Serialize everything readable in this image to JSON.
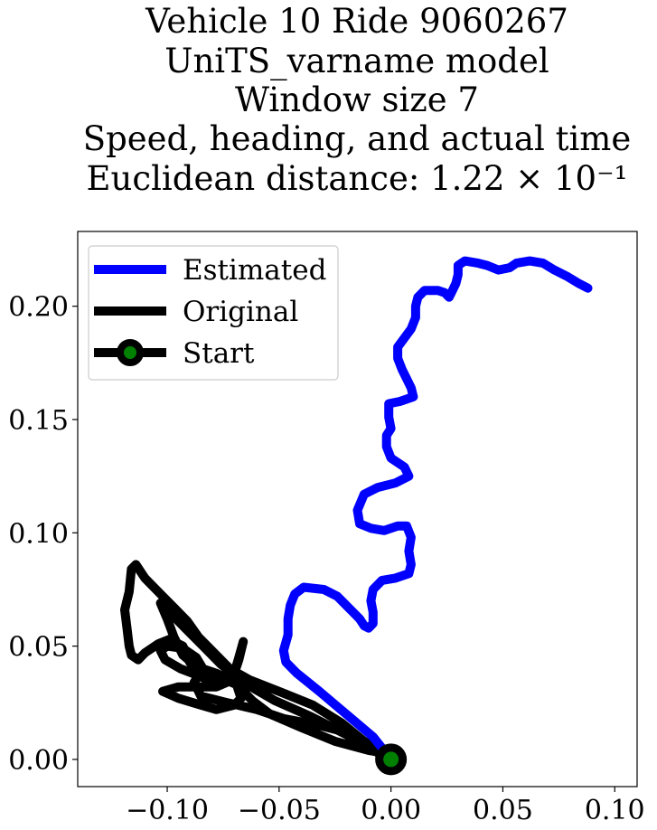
{
  "chart_data": {
    "type": "line",
    "title_lines": [
      "Vehicle 10 Ride 9060267",
      "UniTS_varname model",
      "Window size 7",
      "Speed, heading, and actual time",
      "Euclidean distance: 1.22 × 10⁻¹"
    ],
    "xlabel": "",
    "ylabel": "",
    "xlim": [
      -0.14,
      0.11
    ],
    "ylim": [
      -0.012,
      0.233
    ],
    "xticks": [
      -0.1,
      -0.05,
      0.0,
      0.05,
      0.1
    ],
    "xtick_labels": [
      "−0.10",
      "−0.05",
      "0.00",
      "0.05",
      "0.10"
    ],
    "yticks": [
      0.0,
      0.05,
      0.1,
      0.15,
      0.2
    ],
    "ytick_labels": [
      "0.00",
      "0.05",
      "0.10",
      "0.15",
      "0.20"
    ],
    "grid": false,
    "legend_position": "top-left",
    "series": [
      {
        "name": "Estimated",
        "color": "#0000ff",
        "points": [
          [
            0.0,
            0.0
          ],
          [
            -0.008,
            0.01
          ],
          [
            -0.02,
            0.02
          ],
          [
            -0.032,
            0.03
          ],
          [
            -0.042,
            0.038
          ],
          [
            -0.047,
            0.043
          ],
          [
            -0.048,
            0.048
          ],
          [
            -0.046,
            0.055
          ],
          [
            -0.046,
            0.062
          ],
          [
            -0.045,
            0.068
          ],
          [
            -0.043,
            0.073
          ],
          [
            -0.039,
            0.076
          ],
          [
            -0.03,
            0.075
          ],
          [
            -0.024,
            0.072
          ],
          [
            -0.018,
            0.066
          ],
          [
            -0.014,
            0.062
          ],
          [
            -0.012,
            0.059
          ],
          [
            -0.01,
            0.058
          ],
          [
            -0.008,
            0.06
          ],
          [
            -0.008,
            0.065
          ],
          [
            -0.009,
            0.07
          ],
          [
            -0.008,
            0.075
          ],
          [
            -0.004,
            0.079
          ],
          [
            0.002,
            0.08
          ],
          [
            0.008,
            0.082
          ],
          [
            0.009,
            0.086
          ],
          [
            0.008,
            0.092
          ],
          [
            0.009,
            0.098
          ],
          [
            0.007,
            0.103
          ],
          [
            0.003,
            0.103
          ],
          [
            -0.003,
            0.101
          ],
          [
            -0.009,
            0.102
          ],
          [
            -0.014,
            0.104
          ],
          [
            -0.015,
            0.11
          ],
          [
            -0.012,
            0.117
          ],
          [
            -0.006,
            0.12
          ],
          [
            0.002,
            0.122
          ],
          [
            0.008,
            0.125
          ],
          [
            0.006,
            0.129
          ],
          [
            0.0,
            0.133
          ],
          [
            -0.002,
            0.138
          ],
          [
            -0.002,
            0.143
          ],
          [
            0.0,
            0.146
          ],
          [
            -0.001,
            0.151
          ],
          [
            -0.001,
            0.157
          ],
          [
            0.004,
            0.158
          ],
          [
            0.01,
            0.16
          ],
          [
            0.009,
            0.164
          ],
          [
            0.007,
            0.168
          ],
          [
            0.005,
            0.172
          ],
          [
            0.003,
            0.177
          ],
          [
            0.003,
            0.182
          ],
          [
            0.006,
            0.186
          ],
          [
            0.009,
            0.19
          ],
          [
            0.011,
            0.195
          ],
          [
            0.011,
            0.2
          ],
          [
            0.012,
            0.204
          ],
          [
            0.015,
            0.207
          ],
          [
            0.021,
            0.207
          ],
          [
            0.024,
            0.206
          ],
          [
            0.026,
            0.204
          ],
          [
            0.027,
            0.206
          ],
          [
            0.029,
            0.21
          ],
          [
            0.03,
            0.214
          ],
          [
            0.03,
            0.218
          ],
          [
            0.033,
            0.22
          ],
          [
            0.039,
            0.219
          ],
          [
            0.043,
            0.218
          ],
          [
            0.048,
            0.216
          ],
          [
            0.053,
            0.217
          ],
          [
            0.056,
            0.219
          ],
          [
            0.062,
            0.22
          ],
          [
            0.068,
            0.219
          ],
          [
            0.073,
            0.216
          ],
          [
            0.079,
            0.213
          ],
          [
            0.084,
            0.21
          ],
          [
            0.088,
            0.208
          ]
        ]
      },
      {
        "name": "Original",
        "color": "#000000",
        "points": [
          [
            0.0,
            0.0
          ],
          [
            -0.012,
            0.008
          ],
          [
            -0.022,
            0.016
          ],
          [
            -0.035,
            0.024
          ],
          [
            -0.05,
            0.03
          ],
          [
            -0.063,
            0.035
          ],
          [
            -0.072,
            0.04
          ],
          [
            -0.078,
            0.046
          ],
          [
            -0.086,
            0.054
          ],
          [
            -0.091,
            0.061
          ],
          [
            -0.097,
            0.067
          ],
          [
            -0.103,
            0.073
          ],
          [
            -0.11,
            0.08
          ],
          [
            -0.114,
            0.086
          ],
          [
            -0.116,
            0.084
          ],
          [
            -0.117,
            0.074
          ],
          [
            -0.119,
            0.066
          ],
          [
            -0.118,
            0.058
          ],
          [
            -0.117,
            0.05
          ],
          [
            -0.116,
            0.046
          ],
          [
            -0.113,
            0.044
          ],
          [
            -0.11,
            0.047
          ],
          [
            -0.104,
            0.051
          ],
          [
            -0.099,
            0.053
          ],
          [
            -0.093,
            0.05
          ],
          [
            -0.09,
            0.043
          ],
          [
            -0.084,
            0.036
          ],
          [
            -0.078,
            0.033
          ],
          [
            -0.071,
            0.035
          ],
          [
            -0.068,
            0.044
          ],
          [
            -0.066,
            0.052
          ],
          [
            -0.068,
            0.045
          ],
          [
            -0.071,
            0.035
          ],
          [
            -0.078,
            0.032
          ],
          [
            -0.088,
            0.032
          ],
          [
            -0.095,
            0.032
          ],
          [
            -0.102,
            0.03
          ],
          [
            -0.095,
            0.027
          ],
          [
            -0.085,
            0.024
          ],
          [
            -0.078,
            0.022
          ],
          [
            -0.07,
            0.024
          ],
          [
            -0.067,
            0.027
          ],
          [
            -0.069,
            0.033
          ],
          [
            -0.076,
            0.036
          ],
          [
            -0.086,
            0.037
          ],
          [
            -0.094,
            0.04
          ],
          [
            -0.101,
            0.044
          ],
          [
            -0.103,
            0.048
          ],
          [
            -0.1,
            0.05
          ],
          [
            -0.093,
            0.049
          ],
          [
            -0.087,
            0.045
          ],
          [
            -0.084,
            0.04
          ],
          [
            -0.088,
            0.034
          ],
          [
            -0.085,
            0.028
          ],
          [
            -0.073,
            0.025
          ],
          [
            -0.06,
            0.022
          ],
          [
            -0.048,
            0.018
          ],
          [
            -0.032,
            0.015
          ],
          [
            -0.02,
            0.012
          ],
          [
            -0.01,
            0.007
          ],
          [
            -0.004,
            0.003
          ],
          [
            -0.01,
            0.004
          ],
          [
            -0.025,
            0.008
          ],
          [
            -0.04,
            0.014
          ],
          [
            -0.054,
            0.02
          ],
          [
            -0.062,
            0.026
          ],
          [
            -0.066,
            0.03
          ],
          [
            -0.07,
            0.034
          ],
          [
            -0.078,
            0.038
          ],
          [
            -0.087,
            0.041
          ],
          [
            -0.093,
            0.046
          ],
          [
            -0.097,
            0.054
          ],
          [
            -0.1,
            0.062
          ],
          [
            -0.103,
            0.069
          ],
          [
            -0.099,
            0.065
          ],
          [
            -0.092,
            0.058
          ],
          [
            -0.084,
            0.05
          ],
          [
            -0.076,
            0.042
          ],
          [
            -0.066,
            0.034
          ],
          [
            -0.052,
            0.026
          ],
          [
            -0.036,
            0.019
          ],
          [
            -0.02,
            0.011
          ],
          [
            -0.008,
            0.004
          ],
          [
            0.0,
            0.0
          ]
        ]
      }
    ],
    "start_marker": {
      "name": "Start",
      "point": [
        0.0,
        0.0
      ],
      "edge_color": "#000000",
      "face_color": "#008000"
    },
    "legend": [
      {
        "label": "Estimated",
        "kind": "line",
        "color": "#0000ff"
      },
      {
        "label": "Original",
        "kind": "line",
        "color": "#000000"
      },
      {
        "label": "Start",
        "kind": "marker",
        "color": "#000000",
        "face_color": "#008000"
      }
    ]
  }
}
